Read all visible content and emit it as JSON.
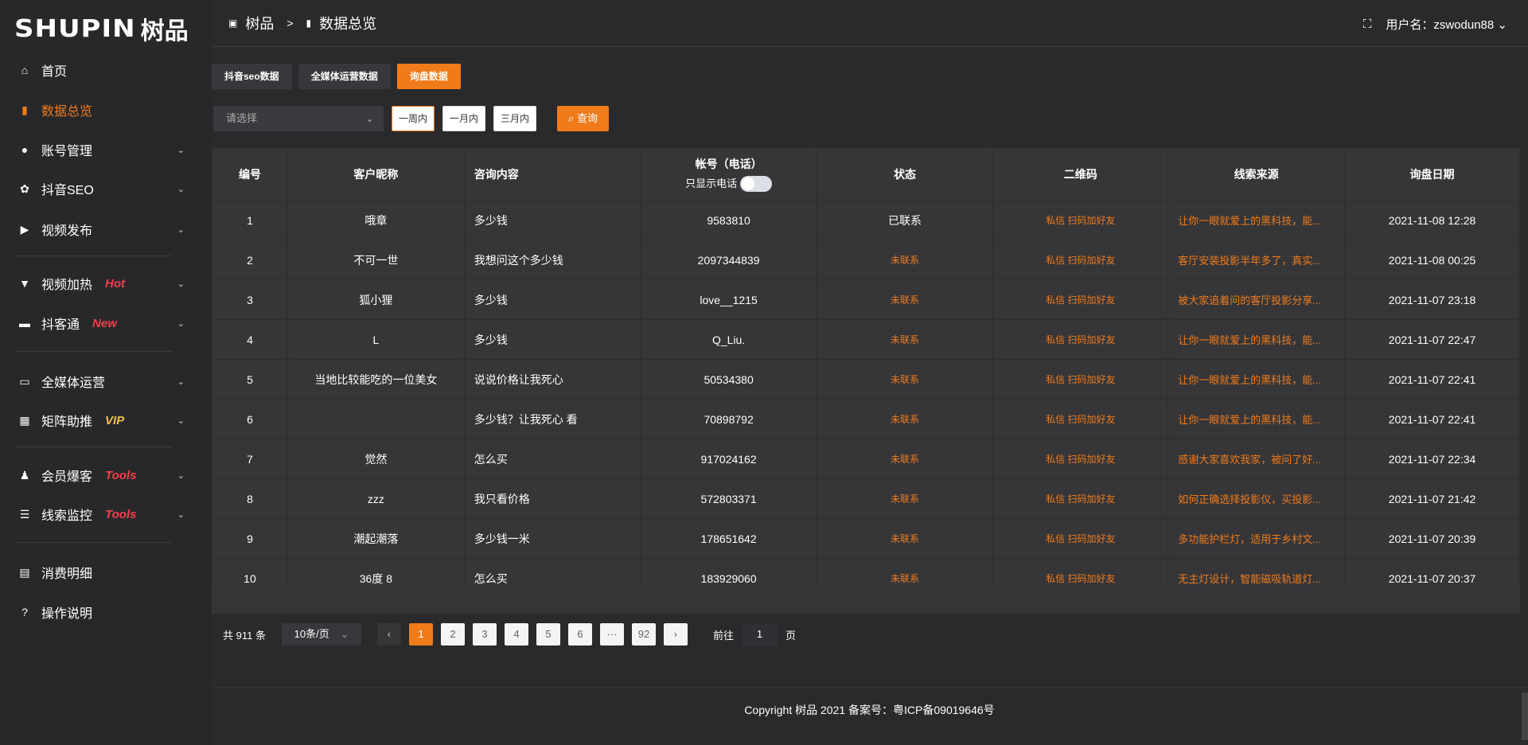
{
  "logo": {
    "en": "SHUPIN",
    "cn": "树品"
  },
  "header": {
    "breadcrumb": [
      "树品",
      "数据总览"
    ],
    "separator": ">",
    "user_label": "用户名：zswodun88"
  },
  "sidebar": {
    "items": [
      {
        "label": "首页",
        "icon": "home-icon"
      },
      {
        "label": "数据总览",
        "icon": "bar-chart-icon",
        "active": true
      },
      {
        "label": "账号管理",
        "icon": "user-icon",
        "chevron": true
      },
      {
        "label": "抖音SEO",
        "icon": "gear-icon",
        "chevron": true
      },
      {
        "label": "视频发布",
        "icon": "video-icon",
        "chevron": true
      },
      {
        "label": "视频加热",
        "icon": "flame-icon",
        "badge": "Hot",
        "chevron": true
      },
      {
        "label": "抖客通",
        "icon": "chat-icon",
        "badge": "New",
        "chevron": true
      },
      {
        "label": "全媒体运营",
        "icon": "monitor-icon",
        "chevron": true
      },
      {
        "label": "矩阵助推",
        "icon": "grid-icon",
        "badge": "VIP",
        "chevron": true
      },
      {
        "label": "会员爆客",
        "icon": "member-icon",
        "badge": "Tools",
        "chevron": true
      },
      {
        "label": "线索监控",
        "icon": "sliders-icon",
        "badge": "Tools",
        "chevron": true
      },
      {
        "label": "消费明细",
        "icon": "wallet-icon"
      },
      {
        "label": "操作说明",
        "icon": "help-icon"
      }
    ]
  },
  "colors": {
    "accent": "#f07b1b",
    "badge_red": "#f0404a",
    "badge_vip": "#f2c14e"
  },
  "tabs": [
    "抖音seo数据",
    "全媒体运营数据",
    "询盘数据"
  ],
  "filters": {
    "select_placeholder": "请选择",
    "ranges": [
      "一周内",
      "一月内",
      "三月内"
    ],
    "query": "查询"
  },
  "table": {
    "headers": [
      "编号",
      "客户昵称",
      "咨询内容",
      "帐号（电话）",
      "状态",
      "二维码",
      "线索来源",
      "询盘日期"
    ],
    "phone_toggle_label": "只显示电话",
    "rows": [
      [
        "1",
        "哦章",
        "多少钱",
        "9583810",
        "已联系",
        "私信 扫码加好友",
        "让你一眼就爱上的黑科技，能...",
        "2021-11-08 12:28"
      ],
      [
        "2",
        "不可一世",
        "我想问这个多少钱",
        "2097344839",
        "未联系",
        "私信 扫码加好友",
        "客厅安装投影半年多了，真实...",
        "2021-11-08 00:25"
      ],
      [
        "3",
        "狐小狸",
        "多少钱",
        "love__1215",
        "未联系",
        "私信 扫码加好友",
        "被大家追着问的客厅投影分享...",
        "2021-11-07 23:18"
      ],
      [
        "4",
        "L",
        "多少钱",
        "Q_Liu.",
        "未联系",
        "私信 扫码加好友",
        "让你一眼就爱上的黑科技，能...",
        "2021-11-07 22:47"
      ],
      [
        "5",
        "当地比较能吃的一位美女",
        "说说价格让我死心",
        "50534380",
        "未联系",
        "私信 扫码加好友",
        "让你一眼就爱上的黑科技，能...",
        "2021-11-07 22:41"
      ],
      [
        "6",
        "",
        "多少钱？让我死心 看",
        "70898792",
        "未联系",
        "私信 扫码加好友",
        "让你一眼就爱上的黑科技，能...",
        "2021-11-07 22:41"
      ],
      [
        "7",
        "觉然",
        "怎么买",
        "917024162",
        "未联系",
        "私信 扫码加好友",
        "感谢大家喜欢我家，被问了好...",
        "2021-11-07 22:34"
      ],
      [
        "8",
        "zzz",
        "我只看价格",
        "572803371",
        "未联系",
        "私信 扫码加好友",
        "如何正确选择投影仪，买投影...",
        "2021-11-07 21:42"
      ],
      [
        "9",
        "潮起潮落",
        "多少钱一米",
        "178651642",
        "未联系",
        "私信 扫码加好友",
        "多功能护栏灯，适用于乡村文...",
        "2021-11-07 20:39"
      ],
      [
        "10",
        "36度 8",
        "怎么买",
        "183929060",
        "未联系",
        "私信 扫码加好友",
        "无主灯设计，智能磁吸轨道灯...",
        "2021-11-07 20:37"
      ]
    ]
  },
  "pagination": {
    "total": "共 911 条",
    "page_size": "10条/页",
    "pages": [
      "1",
      "2",
      "3",
      "4",
      "5",
      "6",
      "···",
      "92"
    ],
    "current": "1",
    "goto_label": "前往",
    "goto_value": "1",
    "page_suffix": "页"
  },
  "footer": "Copyright 树品 2021 备案号：粤ICP备09019646号"
}
